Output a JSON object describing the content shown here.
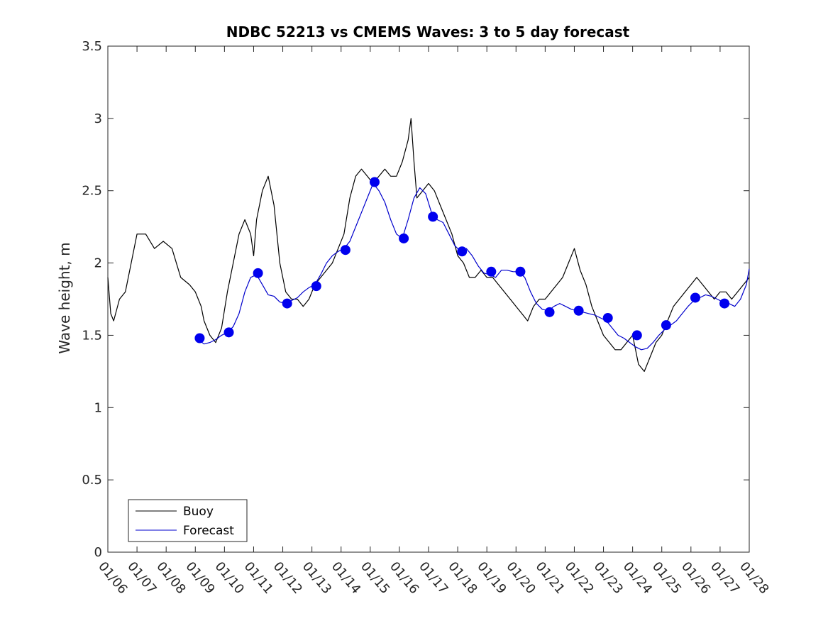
{
  "chart_data": {
    "type": "line",
    "title": "NDBC 52213 vs CMEMS Waves: 3 to 5 day forecast",
    "xlabel": "",
    "ylabel": "Wave height, m",
    "x_tick_labels": [
      "01/06",
      "01/07",
      "01/08",
      "01/09",
      "01/10",
      "01/11",
      "01/12",
      "01/13",
      "01/14",
      "01/15",
      "01/16",
      "01/17",
      "01/18",
      "01/19",
      "01/20",
      "01/21",
      "01/22",
      "01/23",
      "01/24",
      "01/25",
      "01/26",
      "01/27",
      "01/28"
    ],
    "xlim_days": [
      6,
      28
    ],
    "ylim": [
      0,
      3.5
    ],
    "y_ticks": [
      "0",
      "0.5",
      "1",
      "1.5",
      "2",
      "2.5",
      "3",
      "3.5"
    ],
    "grid": false,
    "legend_position": "bottom-left",
    "series": [
      {
        "name": "Buoy",
        "color": "#000000",
        "style": "line",
        "x_days": [
          6.0,
          6.1,
          6.2,
          6.4,
          6.6,
          6.8,
          7.0,
          7.3,
          7.6,
          7.9,
          8.2,
          8.5,
          8.8,
          9.0,
          9.1,
          9.2,
          9.3,
          9.5,
          9.7,
          9.9,
          10.1,
          10.3,
          10.5,
          10.7,
          10.9,
          11.0,
          11.1,
          11.3,
          11.5,
          11.7,
          11.9,
          12.1,
          12.3,
          12.5,
          12.7,
          12.9,
          13.1,
          13.3,
          13.5,
          13.7,
          13.9,
          14.1,
          14.3,
          14.5,
          14.7,
          14.9,
          15.1,
          15.3,
          15.5,
          15.7,
          15.9,
          16.1,
          16.3,
          16.4,
          16.5,
          16.6,
          16.8,
          17.0,
          17.2,
          17.4,
          17.6,
          17.8,
          18.0,
          18.2,
          18.4,
          18.6,
          18.8,
          19.0,
          19.2,
          19.4,
          19.6,
          19.8,
          20.0,
          20.2,
          20.4,
          20.6,
          20.8,
          21.0,
          21.2,
          21.4,
          21.6,
          21.8,
          22.0,
          22.2,
          22.4,
          22.6,
          22.8,
          23.0,
          23.2,
          23.4,
          23.6,
          23.8,
          24.0,
          24.2,
          24.4,
          24.6,
          24.8,
          25.0,
          25.2,
          25.4,
          25.6,
          25.8,
          26.0,
          26.2,
          26.4,
          26.6,
          26.8,
          27.0,
          27.2,
          27.4,
          27.6,
          27.8,
          28.0
        ],
        "values": [
          1.9,
          1.65,
          1.6,
          1.75,
          1.8,
          2.0,
          2.2,
          2.2,
          2.1,
          2.15,
          2.1,
          1.9,
          1.85,
          1.8,
          1.75,
          1.7,
          1.6,
          1.5,
          1.45,
          1.55,
          1.8,
          2.0,
          2.2,
          2.3,
          2.2,
          2.05,
          2.3,
          2.5,
          2.6,
          2.4,
          2.0,
          1.8,
          1.75,
          1.75,
          1.7,
          1.75,
          1.85,
          1.9,
          1.95,
          2.0,
          2.1,
          2.2,
          2.45,
          2.6,
          2.65,
          2.6,
          2.55,
          2.6,
          2.65,
          2.6,
          2.6,
          2.7,
          2.85,
          3.0,
          2.7,
          2.45,
          2.5,
          2.55,
          2.5,
          2.4,
          2.3,
          2.2,
          2.05,
          2.0,
          1.9,
          1.9,
          1.95,
          1.9,
          1.9,
          1.85,
          1.8,
          1.75,
          1.7,
          1.65,
          1.6,
          1.7,
          1.75,
          1.75,
          1.8,
          1.85,
          1.9,
          2.0,
          2.1,
          1.95,
          1.85,
          1.7,
          1.6,
          1.5,
          1.45,
          1.4,
          1.4,
          1.45,
          1.5,
          1.3,
          1.25,
          1.35,
          1.45,
          1.5,
          1.6,
          1.7,
          1.75,
          1.8,
          1.85,
          1.9,
          1.85,
          1.8,
          1.75,
          1.8,
          1.8,
          1.75,
          1.8,
          1.85,
          1.9
        ]
      },
      {
        "name": "Forecast",
        "color": "#0000cc",
        "style": "line",
        "x_days": [
          9.1,
          9.3,
          9.5,
          9.7,
          9.9,
          10.1,
          10.3,
          10.5,
          10.7,
          10.9,
          11.1,
          11.3,
          11.5,
          11.7,
          11.9,
          12.1,
          12.3,
          12.5,
          12.7,
          12.9,
          13.1,
          13.3,
          13.5,
          13.7,
          13.9,
          14.1,
          14.3,
          14.5,
          14.7,
          14.9,
          15.1,
          15.3,
          15.5,
          15.7,
          15.9,
          16.1,
          16.3,
          16.5,
          16.7,
          16.9,
          17.1,
          17.3,
          17.5,
          17.7,
          17.9,
          18.1,
          18.3,
          18.5,
          18.7,
          18.9,
          19.1,
          19.3,
          19.5,
          19.7,
          19.9,
          20.1,
          20.3,
          20.5,
          20.7,
          20.9,
          21.1,
          21.3,
          21.5,
          21.7,
          21.9,
          22.1,
          22.3,
          22.5,
          22.7,
          22.9,
          23.1,
          23.3,
          23.5,
          23.7,
          23.9,
          24.1,
          24.3,
          24.5,
          24.7,
          24.9,
          25.1,
          25.3,
          25.5,
          25.7,
          25.9,
          26.1,
          26.3,
          26.5,
          26.7,
          26.9,
          27.1,
          27.3,
          27.5,
          27.7,
          27.9,
          28.0
        ],
        "values": [
          1.47,
          1.44,
          1.45,
          1.47,
          1.5,
          1.52,
          1.56,
          1.65,
          1.8,
          1.9,
          1.92,
          1.85,
          1.78,
          1.77,
          1.73,
          1.72,
          1.74,
          1.76,
          1.8,
          1.83,
          1.85,
          1.92,
          2.0,
          2.05,
          2.08,
          2.1,
          2.15,
          2.25,
          2.35,
          2.45,
          2.55,
          2.5,
          2.42,
          2.3,
          2.2,
          2.17,
          2.3,
          2.45,
          2.52,
          2.48,
          2.35,
          2.3,
          2.28,
          2.2,
          2.12,
          2.08,
          2.1,
          2.05,
          1.98,
          1.93,
          1.92,
          1.9,
          1.95,
          1.95,
          1.94,
          1.94,
          1.9,
          1.8,
          1.72,
          1.68,
          1.67,
          1.7,
          1.72,
          1.7,
          1.68,
          1.67,
          1.66,
          1.65,
          1.64,
          1.62,
          1.6,
          1.55,
          1.5,
          1.48,
          1.45,
          1.42,
          1.4,
          1.41,
          1.45,
          1.5,
          1.54,
          1.57,
          1.6,
          1.65,
          1.7,
          1.74,
          1.76,
          1.78,
          1.77,
          1.75,
          1.73,
          1.72,
          1.7,
          1.75,
          1.85,
          1.96
        ]
      },
      {
        "name": "",
        "color": "#0000ee",
        "style": "markers",
        "x_days": [
          9.15,
          10.15,
          11.15,
          12.15,
          13.15,
          14.15,
          15.15,
          16.15,
          17.15,
          18.15,
          19.15,
          20.15,
          21.15,
          22.15,
          23.15,
          24.15,
          25.15,
          26.15,
          27.15
        ],
        "values": [
          1.48,
          1.52,
          1.93,
          1.72,
          1.84,
          2.09,
          2.56,
          2.17,
          2.32,
          2.08,
          1.94,
          1.94,
          1.66,
          1.67,
          1.62,
          1.5,
          1.57,
          1.76,
          1.72
        ]
      }
    ],
    "legend": [
      {
        "label": "Buoy",
        "color": "#000000"
      },
      {
        "label": "Forecast",
        "color": "#0000cc"
      }
    ]
  }
}
